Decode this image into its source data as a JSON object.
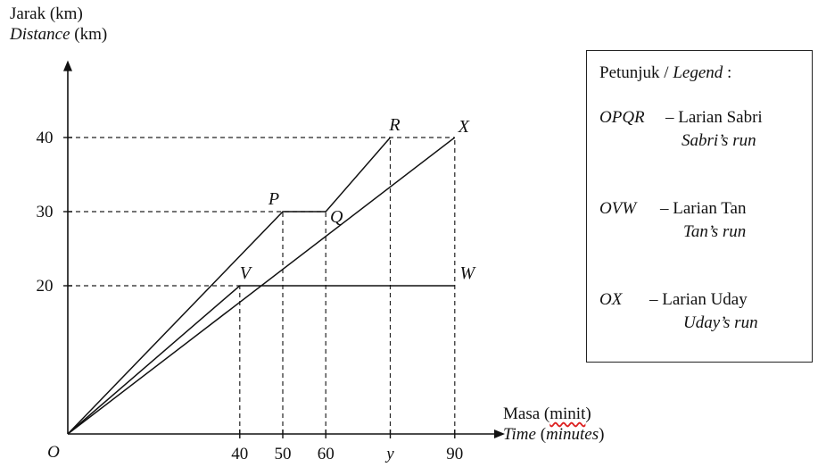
{
  "y_axis_title": {
    "line1": "Jarak (km)",
    "line2_italic": "Distance",
    "line2_rest": " (km)"
  },
  "x_axis_title": {
    "line1_pre": "Masa (",
    "line1_squiggle": "minit",
    "line1_post": ")",
    "line2_italic": "Time",
    "line2_rest": " (",
    "line2_italic2": "minutes",
    "line2_end": ")"
  },
  "legend": {
    "title_pre": "Petunjuk / ",
    "title_italic": "Legend",
    "title_post": " :",
    "entries": [
      {
        "code": "OPQR",
        "label": "– Larian Sabri",
        "sub": "Sabri’s run"
      },
      {
        "code": "OVW",
        "label": "– Larian Tan",
        "sub": "Tan’s run"
      },
      {
        "code": "OX",
        "label": "– Larian Uday",
        "sub": "Uday’s run"
      }
    ]
  },
  "chart_data": {
    "type": "line",
    "xlabel": "Masa (minit) / Time (minutes)",
    "ylabel": "Jarak (km) / Distance (km)",
    "xlim": [
      0,
      100
    ],
    "ylim": [
      0,
      48
    ],
    "origin_label": "O",
    "x_ticks": [
      {
        "value": 40,
        "label": "40"
      },
      {
        "value": 50,
        "label": "50"
      },
      {
        "value": 60,
        "label": "60"
      },
      {
        "value": 75,
        "label": "y"
      },
      {
        "value": 90,
        "label": "90"
      }
    ],
    "y_ticks": [
      {
        "value": 20,
        "label": "20"
      },
      {
        "value": 30,
        "label": "30"
      },
      {
        "value": 40,
        "label": "40"
      }
    ],
    "series": [
      {
        "name": "OPQR",
        "points": [
          {
            "x": 0,
            "y": 0,
            "label": "O"
          },
          {
            "x": 50,
            "y": 30,
            "label": "P"
          },
          {
            "x": 60,
            "y": 30,
            "label": "Q"
          },
          {
            "x": 75,
            "y": 40,
            "label": "R"
          }
        ]
      },
      {
        "name": "OVW",
        "points": [
          {
            "x": 0,
            "y": 0,
            "label": "O"
          },
          {
            "x": 40,
            "y": 20,
            "label": "V"
          },
          {
            "x": 90,
            "y": 20,
            "label": "W"
          }
        ]
      },
      {
        "name": "OX",
        "points": [
          {
            "x": 0,
            "y": 0,
            "label": "O"
          },
          {
            "x": 90,
            "y": 40,
            "label": "X"
          }
        ]
      }
    ],
    "dashed_guides": [
      {
        "from": "y-axis",
        "y": 40,
        "to_x": 90
      },
      {
        "from": "y-axis",
        "y": 30,
        "to_x": 60
      },
      {
        "from": "y-axis",
        "y": 20,
        "to_x": 40
      },
      {
        "from": "x-axis",
        "x": 40,
        "to_y": 20
      },
      {
        "from": "x-axis",
        "x": 50,
        "to_y": 30
      },
      {
        "from": "x-axis",
        "x": 60,
        "to_y": 30
      },
      {
        "from": "x-axis",
        "x": 75,
        "to_y": 40
      },
      {
        "from": "x-axis",
        "x": 90,
        "to_y": 40
      }
    ],
    "legend_position": "right"
  }
}
